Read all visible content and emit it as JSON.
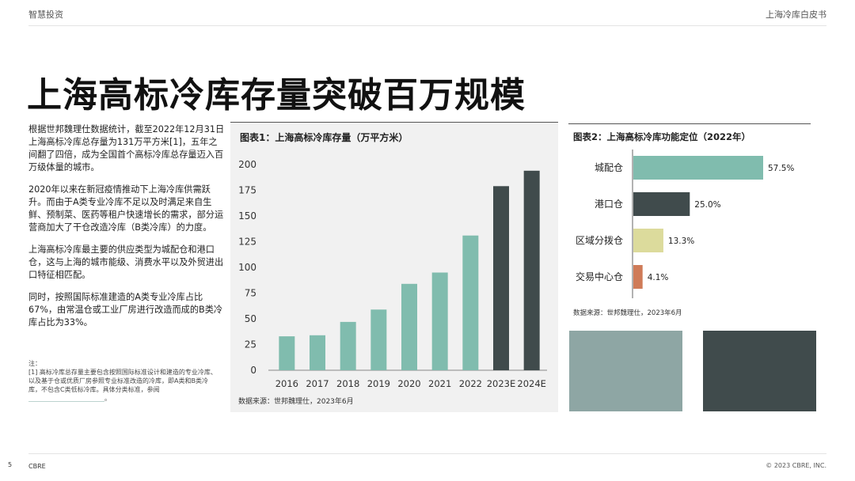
{
  "header": {
    "left": "智慧投资",
    "right": "上海冷库白皮书"
  },
  "title": "上海高标冷库存量突破百万规模",
  "body": {
    "p1": "根据世邦魏理仕数据统计，截至2022年12月31日上海高标冷库总存量为131万平方米[1]，五年之间翻了四倍，成为全国首个高标冷库总存量迈入百万级体量的城市。",
    "p2": "2020年以来在新冠疫情推动下上海冷库供需跃升。而由于A类专业冷库不足以及时满足来自生鲜、预制菜、医药等租户快速增长的需求，部分运营商加大了干仓改造冷库（B类冷库）的力度。",
    "p3": "上海高标冷库最主要的供应类型为城配仓和港口仓，这与上海的城市能级、消费水平以及外贸进出口特征相匹配。",
    "p4": "同时，按照国际标准建造的A类专业冷库占比67%，由常温仓或工业厂房进行改造而成的B类冷库占比为33%。"
  },
  "note": {
    "label": "注：",
    "text": "[1] 高标冷库总存量主要包含按照国际标准设计和建造的专业冷库、以及基于仓或优质厂房参照专业标准改造的冷库，即A类和B类冷库，不包含C类低标冷库。具体分类标准，参阅",
    "tail": "。"
  },
  "chart_data": [
    {
      "type": "bar",
      "title": "图表1：上海高标冷库存量（万平方米）",
      "source": "数据来源：世邦魏理仕，2023年6月",
      "categories": [
        "2016",
        "2017",
        "2018",
        "2019",
        "2020",
        "2021",
        "2022",
        "2023E",
        "2024E"
      ],
      "values": [
        33,
        34,
        47,
        59,
        84,
        95,
        131,
        179,
        194
      ],
      "ylim": [
        0,
        200
      ],
      "yticks": [
        "0",
        "25",
        "50",
        "75",
        "100",
        "125",
        "150",
        "175",
        "200"
      ],
      "colors": {
        "actual": "#80bcae",
        "forecast": "#404b4c"
      },
      "forecast_categories": [
        "2023E",
        "2024E"
      ],
      "grid": false
    },
    {
      "type": "bar",
      "orientation": "horizontal",
      "title": "图表2：上海高标冷库功能定位（2022年）",
      "source": "数据来源：世邦魏理仕，2023年6月",
      "categories": [
        "城配仓",
        "港口仓",
        "区域分拨仓",
        "交易中心仓"
      ],
      "values": [
        57.5,
        25.0,
        13.3,
        4.1
      ],
      "value_labels": [
        "57.5%",
        "25.0%",
        "13.3%",
        "4.1%"
      ],
      "colors": [
        "#80bcae",
        "#404b4c",
        "#dcdb9c",
        "#cf7b58"
      ]
    }
  ],
  "footer": {
    "page": "5",
    "brand": "CBRE",
    "copyright": "© 2023 CBRE, INC."
  }
}
